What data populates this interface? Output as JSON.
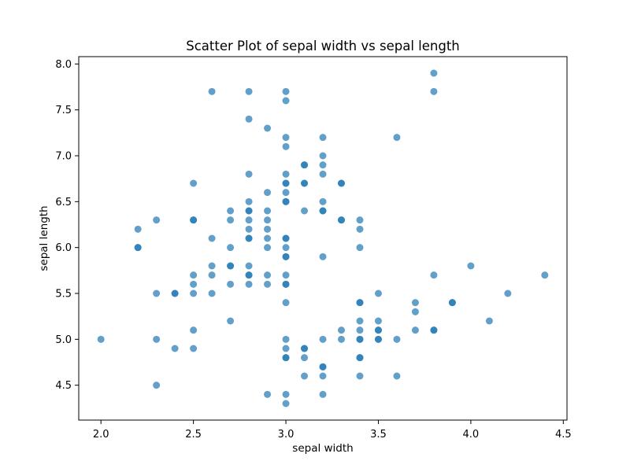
{
  "chart_data": {
    "type": "scatter",
    "title": "Scatter Plot of sepal width vs sepal length",
    "xlabel": "sepal width",
    "ylabel": "sepal length",
    "xlim": [
      1.88,
      4.52
    ],
    "ylim": [
      4.12,
      8.08
    ],
    "xticks": [
      2.0,
      2.5,
      3.0,
      3.5,
      4.0,
      4.5
    ],
    "yticks": [
      4.5,
      5.0,
      5.5,
      6.0,
      6.5,
      7.0,
      7.5,
      8.0
    ],
    "xtick_labels": [
      "2.0",
      "2.5",
      "3.0",
      "3.5",
      "4.0",
      "4.5"
    ],
    "ytick_labels": [
      "4.5",
      "5.0",
      "5.5",
      "6.0",
      "6.5",
      "7.0",
      "7.5",
      "8.0"
    ],
    "grid": false,
    "marker_color": "#1f77b4",
    "marker_alpha": 0.7,
    "points": [
      [
        2.0,
        5.0
      ],
      [
        2.2,
        6.2
      ],
      [
        2.2,
        6.0
      ],
      [
        2.2,
        6.0
      ],
      [
        2.3,
        6.3
      ],
      [
        2.3,
        5.5
      ],
      [
        2.3,
        5.0
      ],
      [
        2.3,
        4.5
      ],
      [
        2.4,
        5.5
      ],
      [
        2.4,
        5.5
      ],
      [
        2.4,
        4.9
      ],
      [
        2.5,
        6.7
      ],
      [
        2.5,
        6.3
      ],
      [
        2.5,
        6.3
      ],
      [
        2.5,
        5.7
      ],
      [
        2.5,
        5.6
      ],
      [
        2.5,
        5.5
      ],
      [
        2.5,
        5.1
      ],
      [
        2.5,
        4.9
      ],
      [
        2.6,
        7.7
      ],
      [
        2.6,
        6.1
      ],
      [
        2.6,
        5.8
      ],
      [
        2.6,
        5.7
      ],
      [
        2.6,
        5.5
      ],
      [
        2.7,
        6.4
      ],
      [
        2.7,
        6.3
      ],
      [
        2.7,
        6.0
      ],
      [
        2.7,
        5.8
      ],
      [
        2.7,
        5.8
      ],
      [
        2.7,
        5.6
      ],
      [
        2.7,
        5.2
      ],
      [
        2.8,
        7.7
      ],
      [
        2.8,
        7.4
      ],
      [
        2.8,
        6.8
      ],
      [
        2.8,
        6.5
      ],
      [
        2.8,
        6.4
      ],
      [
        2.8,
        6.4
      ],
      [
        2.8,
        6.3
      ],
      [
        2.8,
        6.2
      ],
      [
        2.8,
        6.1
      ],
      [
        2.8,
        6.1
      ],
      [
        2.8,
        5.8
      ],
      [
        2.8,
        5.7
      ],
      [
        2.8,
        5.7
      ],
      [
        2.8,
        5.6
      ],
      [
        2.9,
        7.3
      ],
      [
        2.9,
        6.6
      ],
      [
        2.9,
        6.4
      ],
      [
        2.9,
        6.3
      ],
      [
        2.9,
        6.2
      ],
      [
        2.9,
        6.1
      ],
      [
        2.9,
        6.0
      ],
      [
        2.9,
        5.7
      ],
      [
        2.9,
        5.6
      ],
      [
        2.9,
        4.4
      ],
      [
        3.0,
        7.7
      ],
      [
        3.0,
        7.6
      ],
      [
        3.0,
        7.2
      ],
      [
        3.0,
        7.1
      ],
      [
        3.0,
        6.8
      ],
      [
        3.0,
        6.7
      ],
      [
        3.0,
        6.7
      ],
      [
        3.0,
        6.6
      ],
      [
        3.0,
        6.5
      ],
      [
        3.0,
        6.5
      ],
      [
        3.0,
        6.1
      ],
      [
        3.0,
        6.1
      ],
      [
        3.0,
        6.0
      ],
      [
        3.0,
        5.9
      ],
      [
        3.0,
        5.9
      ],
      [
        3.0,
        5.7
      ],
      [
        3.0,
        5.6
      ],
      [
        3.0,
        5.6
      ],
      [
        3.0,
        5.4
      ],
      [
        3.0,
        5.0
      ],
      [
        3.0,
        4.9
      ],
      [
        3.0,
        4.8
      ],
      [
        3.0,
        4.8
      ],
      [
        3.0,
        4.4
      ],
      [
        3.0,
        4.3
      ],
      [
        3.1,
        6.9
      ],
      [
        3.1,
        6.9
      ],
      [
        3.1,
        6.7
      ],
      [
        3.1,
        6.7
      ],
      [
        3.1,
        6.4
      ],
      [
        3.1,
        4.9
      ],
      [
        3.1,
        4.9
      ],
      [
        3.1,
        4.8
      ],
      [
        3.1,
        4.6
      ],
      [
        3.2,
        7.2
      ],
      [
        3.2,
        7.0
      ],
      [
        3.2,
        6.9
      ],
      [
        3.2,
        6.8
      ],
      [
        3.2,
        6.5
      ],
      [
        3.2,
        6.4
      ],
      [
        3.2,
        6.4
      ],
      [
        3.2,
        5.9
      ],
      [
        3.2,
        5.0
      ],
      [
        3.2,
        4.7
      ],
      [
        3.2,
        4.7
      ],
      [
        3.2,
        4.6
      ],
      [
        3.2,
        4.4
      ],
      [
        3.3,
        6.7
      ],
      [
        3.3,
        6.7
      ],
      [
        3.3,
        6.3
      ],
      [
        3.3,
        6.3
      ],
      [
        3.3,
        5.1
      ],
      [
        3.3,
        5.0
      ],
      [
        3.4,
        6.3
      ],
      [
        3.4,
        6.2
      ],
      [
        3.4,
        6.0
      ],
      [
        3.4,
        5.4
      ],
      [
        3.4,
        5.4
      ],
      [
        3.4,
        5.2
      ],
      [
        3.4,
        5.1
      ],
      [
        3.4,
        5.0
      ],
      [
        3.4,
        5.0
      ],
      [
        3.4,
        4.8
      ],
      [
        3.4,
        4.8
      ],
      [
        3.4,
        4.6
      ],
      [
        3.5,
        5.5
      ],
      [
        3.5,
        5.2
      ],
      [
        3.5,
        5.1
      ],
      [
        3.5,
        5.1
      ],
      [
        3.5,
        5.0
      ],
      [
        3.5,
        5.0
      ],
      [
        3.6,
        7.2
      ],
      [
        3.6,
        5.0
      ],
      [
        3.6,
        4.6
      ],
      [
        3.7,
        5.4
      ],
      [
        3.7,
        5.3
      ],
      [
        3.7,
        5.1
      ],
      [
        3.8,
        7.9
      ],
      [
        3.8,
        7.7
      ],
      [
        3.8,
        5.7
      ],
      [
        3.8,
        5.1
      ],
      [
        3.8,
        5.1
      ],
      [
        3.9,
        5.4
      ],
      [
        3.9,
        5.4
      ],
      [
        4.0,
        5.8
      ],
      [
        4.1,
        5.2
      ],
      [
        4.2,
        5.5
      ],
      [
        4.4,
        5.7
      ]
    ]
  }
}
